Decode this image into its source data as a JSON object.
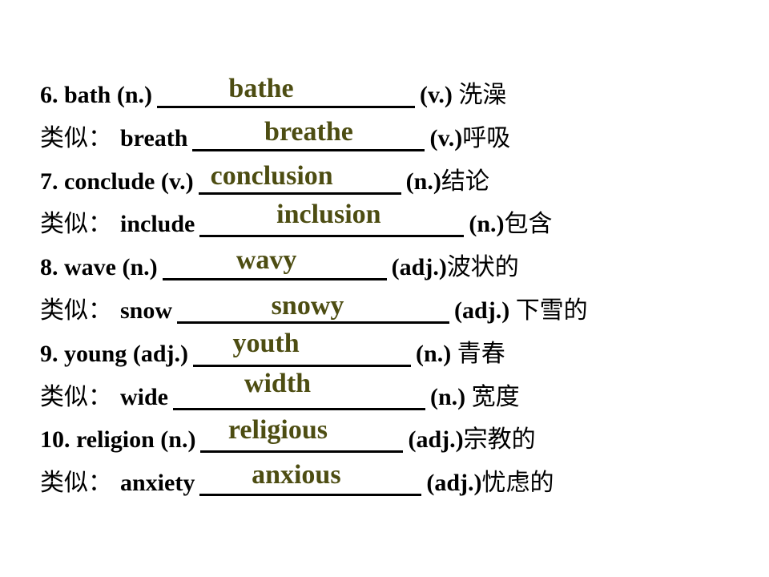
{
  "slide": {
    "background_color": "#ffffff",
    "text_color": "#000000",
    "answer_color": "#4d4d12",
    "underline_color": "#000000",
    "rows": [
      {
        "label_zh": "",
        "question": "6. bath (n.)",
        "answer": "bathe",
        "pos": "(v.)",
        "translation_zh": " 洗澡"
      },
      {
        "label_zh": "类似：",
        "question": "breath",
        "answer": "breathe",
        "pos": "(v.)",
        "translation_zh": "呼吸"
      },
      {
        "label_zh": "",
        "question": "7. conclude (v.)",
        "answer": "conclusion",
        "pos": "(n.)",
        "translation_zh": "结论"
      },
      {
        "label_zh": "类似：",
        "question": "include",
        "answer": "inclusion",
        "pos": "(n.)",
        "translation_zh": "包含"
      },
      {
        "label_zh": "",
        "question": "8. wave (n.)",
        "answer": "wavy",
        "pos": "(adj.)",
        "translation_zh": "波状的"
      },
      {
        "label_zh": "类似：",
        "question": "snow",
        "answer": "snowy",
        "pos": "(adj.)",
        "translation_zh": " 下雪的"
      },
      {
        "label_zh": "",
        "question": "9. young (adj.)",
        "answer": "youth",
        "pos": "(n.)",
        "translation_zh": " 青春"
      },
      {
        "label_zh": "类似：",
        "question": "wide",
        "answer": "width",
        "pos": "(n.)",
        "translation_zh": " 宽度"
      },
      {
        "label_zh": "",
        "question": "10. religion (n.)",
        "answer": "religious",
        "pos": "(adj.)",
        "translation_zh": "宗教的"
      },
      {
        "label_zh": "类似：",
        "question": "anxiety",
        "answer": "anxious",
        "pos": "(adj.)",
        "translation_zh": "忧虑的"
      }
    ]
  }
}
